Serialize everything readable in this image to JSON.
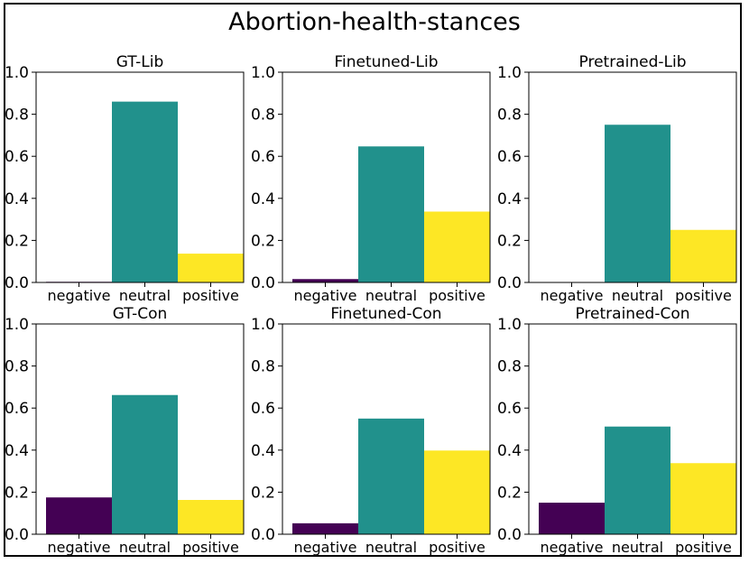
{
  "figure_title": "Abortion-health-stances",
  "colors": {
    "negative": "#440154",
    "neutral": "#21918c",
    "positive": "#fde725",
    "axis": "#000000"
  },
  "chart_data": [
    {
      "type": "bar",
      "title": "GT-Lib",
      "categories": [
        "negative",
        "neutral",
        "positive"
      ],
      "values": [
        0.003,
        0.86,
        0.137
      ],
      "ylim": [
        0,
        1.0
      ],
      "yticks": [
        "0.0",
        "0.2",
        "0.4",
        "0.6",
        "0.8",
        "1.0"
      ],
      "xlabel": "",
      "ylabel": ""
    },
    {
      "type": "bar",
      "title": "Finetuned-Lib",
      "categories": [
        "negative",
        "neutral",
        "positive"
      ],
      "values": [
        0.016,
        0.647,
        0.337
      ],
      "ylim": [
        0,
        1.0
      ],
      "yticks": [
        "0.0",
        "0.2",
        "0.4",
        "0.6",
        "0.8",
        "1.0"
      ],
      "xlabel": "",
      "ylabel": ""
    },
    {
      "type": "bar",
      "title": "Pretrained-Lib",
      "categories": [
        "negative",
        "neutral",
        "positive"
      ],
      "values": [
        0.0,
        0.75,
        0.25
      ],
      "ylim": [
        0,
        1.0
      ],
      "yticks": [
        "0.0",
        "0.2",
        "0.4",
        "0.6",
        "0.8",
        "1.0"
      ],
      "xlabel": "",
      "ylabel": ""
    },
    {
      "type": "bar",
      "title": "GT-Con",
      "categories": [
        "negative",
        "neutral",
        "positive"
      ],
      "values": [
        0.175,
        0.662,
        0.163
      ],
      "ylim": [
        0,
        1.0
      ],
      "yticks": [
        "0.0",
        "0.2",
        "0.4",
        "0.6",
        "0.8",
        "1.0"
      ],
      "xlabel": "",
      "ylabel": ""
    },
    {
      "type": "bar",
      "title": "Finetuned-Con",
      "categories": [
        "negative",
        "neutral",
        "positive"
      ],
      "values": [
        0.052,
        0.55,
        0.398
      ],
      "ylim": [
        0,
        1.0
      ],
      "yticks": [
        "0.0",
        "0.2",
        "0.4",
        "0.6",
        "0.8",
        "1.0"
      ],
      "xlabel": "",
      "ylabel": ""
    },
    {
      "type": "bar",
      "title": "Pretrained-Con",
      "categories": [
        "negative",
        "neutral",
        "positive"
      ],
      "values": [
        0.15,
        0.512,
        0.338
      ],
      "ylim": [
        0,
        1.0
      ],
      "yticks": [
        "0.0",
        "0.2",
        "0.4",
        "0.6",
        "0.8",
        "1.0"
      ],
      "xlabel": "",
      "ylabel": ""
    }
  ]
}
